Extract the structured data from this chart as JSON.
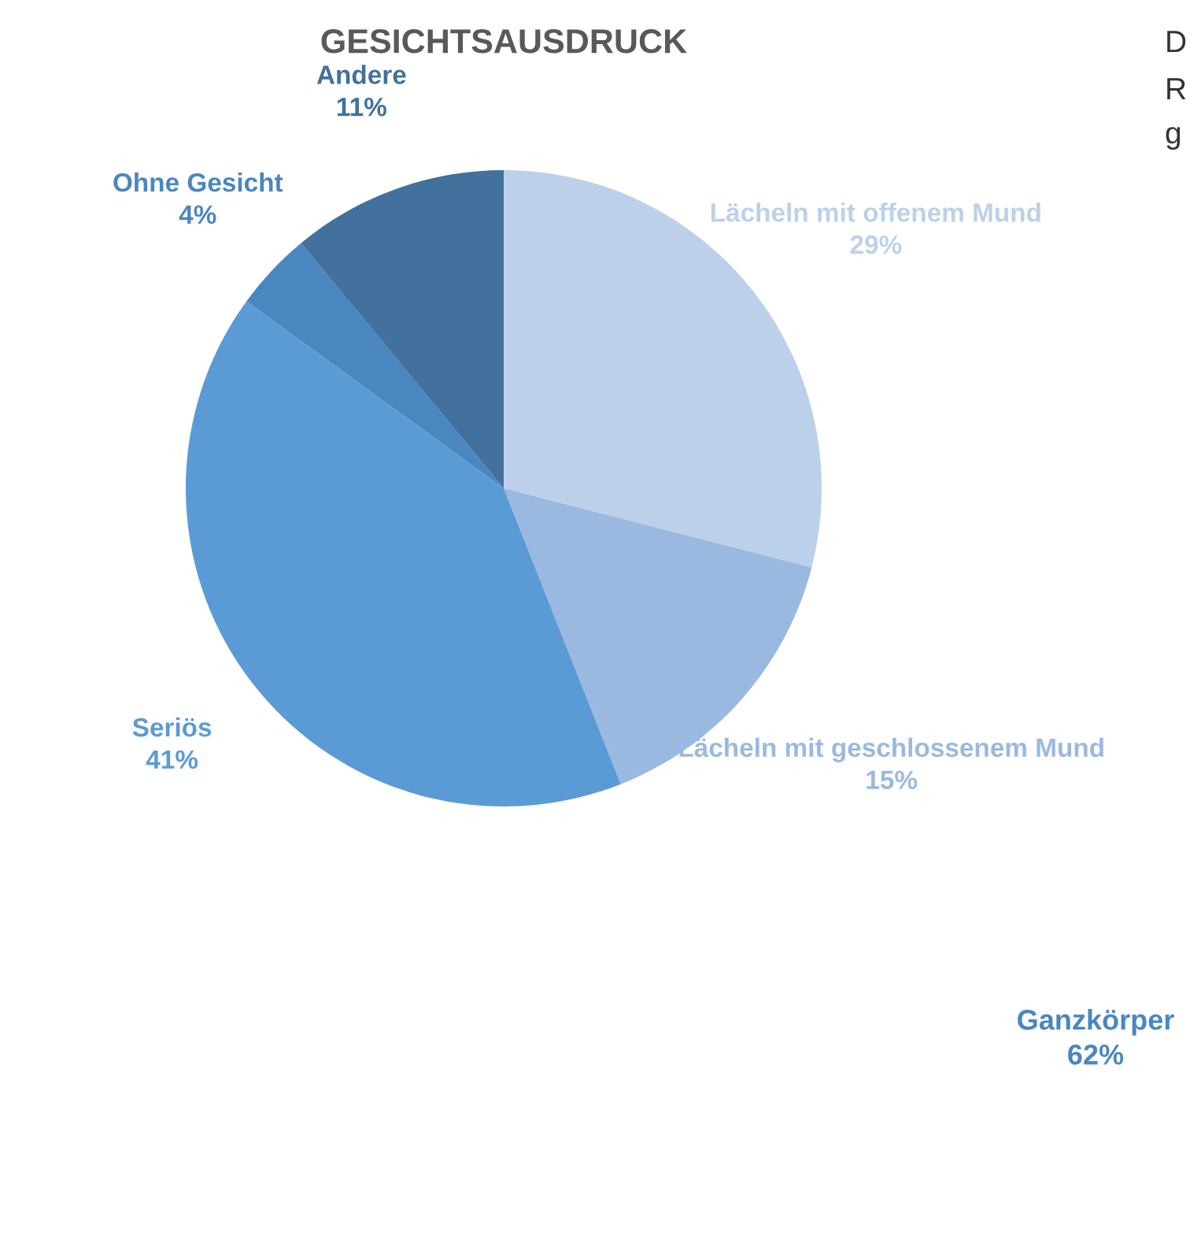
{
  "chart_data": {
    "type": "pie",
    "title": "GESICHTSAUSDRUCK",
    "categories": [
      "Lächeln mit offenem Mund",
      "Lächeln mit geschlossenem Mund",
      "Seriös",
      "Ohne Gesicht",
      "Andere"
    ],
    "values": [
      29,
      15,
      41,
      4,
      11
    ],
    "value_labels": [
      "29%",
      "15%",
      "41%",
      "4%",
      "11%"
    ],
    "colors": [
      "#bdd0ea",
      "#9ab9e0",
      "#5b9bd5",
      "#4a86c0",
      "#41719c"
    ],
    "annotations": [
      "D",
      "R",
      "g",
      "Ganzkörper\n62%"
    ]
  }
}
